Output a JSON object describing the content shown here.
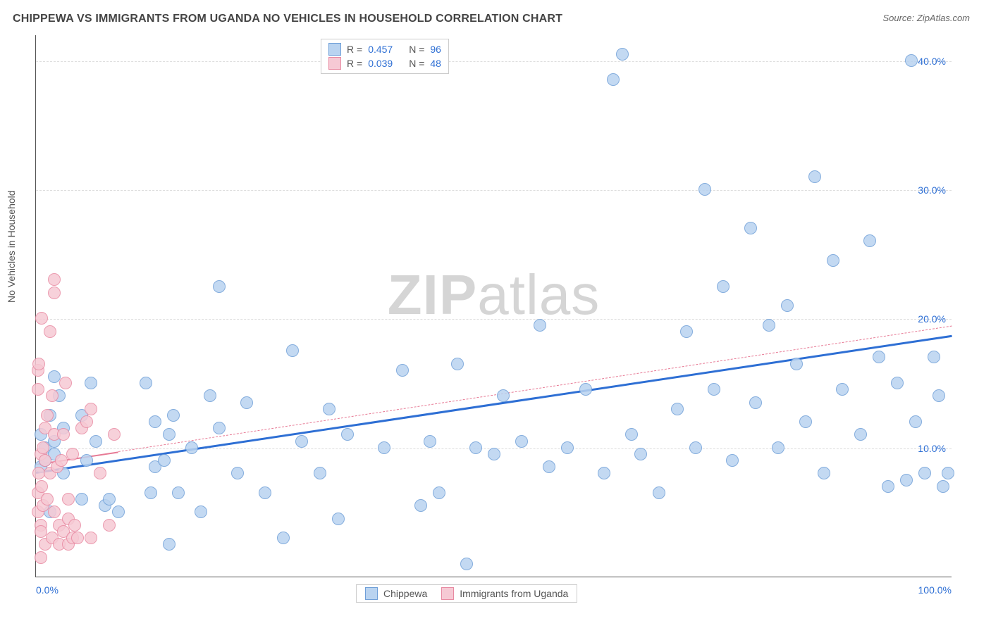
{
  "title": "CHIPPEWA VS IMMIGRANTS FROM UGANDA NO VEHICLES IN HOUSEHOLD CORRELATION CHART",
  "source": "Source: ZipAtlas.com",
  "watermark_a": "ZIP",
  "watermark_b": "atlas",
  "ylabel": "No Vehicles in Household",
  "chart": {
    "type": "scatter",
    "xlim": [
      0,
      100
    ],
    "ylim": [
      0,
      42
    ],
    "y_gridlines": [
      10,
      20,
      30,
      40
    ],
    "y_tick_labels": [
      "10.0%",
      "20.0%",
      "30.0%",
      "40.0%"
    ],
    "x_tick_labels": {
      "left": "0.0%",
      "right": "100.0%"
    },
    "background_color": "#ffffff",
    "grid_color": "#dddddd",
    "marker_radius": 9,
    "marker_stroke_width": 1,
    "series": [
      {
        "name": "Chippewa",
        "fill_color": "#b9d3f0",
        "stroke_color": "#6f9fd8",
        "r_value": "0.457",
        "n_value": "96",
        "trend": {
          "x1": 0,
          "y1": 8.2,
          "x2": 100,
          "y2": 18.8,
          "solid_until_x": 100,
          "color": "#2e6fd4",
          "width": 3
        },
        "points": [
          [
            0.5,
            8.5
          ],
          [
            0.5,
            11
          ],
          [
            1,
            10
          ],
          [
            1,
            9
          ],
          [
            1.5,
            5
          ],
          [
            1.5,
            12.5
          ],
          [
            2,
            9.5
          ],
          [
            2,
            15.5
          ],
          [
            2,
            10.5
          ],
          [
            2.5,
            14
          ],
          [
            3,
            8
          ],
          [
            3,
            11.5
          ],
          [
            5,
            12.5
          ],
          [
            5,
            6
          ],
          [
            5.5,
            9
          ],
          [
            6,
            15
          ],
          [
            6.5,
            10.5
          ],
          [
            7.5,
            5.5
          ],
          [
            8,
            6
          ],
          [
            9,
            5
          ],
          [
            12,
            15
          ],
          [
            12.5,
            6.5
          ],
          [
            13,
            8.5
          ],
          [
            13,
            12
          ],
          [
            14,
            9
          ],
          [
            14.5,
            11
          ],
          [
            14.5,
            2.5
          ],
          [
            15,
            12.5
          ],
          [
            15.5,
            6.5
          ],
          [
            17,
            10
          ],
          [
            18,
            5
          ],
          [
            19,
            14
          ],
          [
            20,
            22.5
          ],
          [
            20,
            11.5
          ],
          [
            22,
            8
          ],
          [
            23,
            13.5
          ],
          [
            25,
            6.5
          ],
          [
            27,
            3
          ],
          [
            28,
            17.5
          ],
          [
            29,
            10.5
          ],
          [
            31,
            8
          ],
          [
            32,
            13
          ],
          [
            33,
            4.5
          ],
          [
            34,
            11
          ],
          [
            38,
            10
          ],
          [
            40,
            16
          ],
          [
            42,
            5.5
          ],
          [
            43,
            10.5
          ],
          [
            44,
            6.5
          ],
          [
            46,
            16.5
          ],
          [
            47,
            1
          ],
          [
            48,
            10
          ],
          [
            50,
            9.5
          ],
          [
            51,
            14
          ],
          [
            53,
            10.5
          ],
          [
            55,
            19.5
          ],
          [
            56,
            8.5
          ],
          [
            58,
            10
          ],
          [
            60,
            14.5
          ],
          [
            62,
            8
          ],
          [
            63,
            38.5
          ],
          [
            64,
            40.5
          ],
          [
            65,
            11
          ],
          [
            66,
            9.5
          ],
          [
            68,
            6.5
          ],
          [
            70,
            13
          ],
          [
            71,
            19
          ],
          [
            72,
            10
          ],
          [
            73,
            30
          ],
          [
            74,
            14.5
          ],
          [
            75,
            22.5
          ],
          [
            76,
            9
          ],
          [
            78,
            27
          ],
          [
            78.5,
            13.5
          ],
          [
            80,
            19.5
          ],
          [
            81,
            10
          ],
          [
            82,
            21
          ],
          [
            83,
            16.5
          ],
          [
            84,
            12
          ],
          [
            85,
            31
          ],
          [
            86,
            8
          ],
          [
            87,
            24.5
          ],
          [
            88,
            14.5
          ],
          [
            90,
            11
          ],
          [
            91,
            26
          ],
          [
            92,
            17
          ],
          [
            93,
            7
          ],
          [
            94,
            15
          ],
          [
            95,
            7.5
          ],
          [
            95.5,
            40
          ],
          [
            96,
            12
          ],
          [
            97,
            8
          ],
          [
            98,
            17
          ],
          [
            98.5,
            14
          ],
          [
            99,
            7
          ],
          [
            99.5,
            8
          ]
        ]
      },
      {
        "name": "Immigrants from Uganda",
        "fill_color": "#f6c9d4",
        "stroke_color": "#e88aa2",
        "r_value": "0.039",
        "n_value": "48",
        "trend": {
          "x1": 0,
          "y1": 8.8,
          "x2": 100,
          "y2": 19.5,
          "solid_until_x": 9,
          "color": "#e77a95",
          "width": 2
        },
        "points": [
          [
            0.2,
            5
          ],
          [
            0.2,
            6.5
          ],
          [
            0.2,
            14.5
          ],
          [
            0.2,
            16
          ],
          [
            0.3,
            8
          ],
          [
            0.3,
            16.5
          ],
          [
            0.5,
            4
          ],
          [
            0.5,
            1.5
          ],
          [
            0.5,
            9.5
          ],
          [
            0.5,
            3.5
          ],
          [
            0.6,
            7
          ],
          [
            0.6,
            20
          ],
          [
            0.8,
            10
          ],
          [
            0.8,
            5.5
          ],
          [
            1,
            11.5
          ],
          [
            1,
            2.5
          ],
          [
            1,
            9
          ],
          [
            1.2,
            6
          ],
          [
            1.2,
            12.5
          ],
          [
            1.5,
            8
          ],
          [
            1.5,
            19
          ],
          [
            1.8,
            3
          ],
          [
            1.8,
            14
          ],
          [
            2,
            22
          ],
          [
            2,
            5
          ],
          [
            2,
            23
          ],
          [
            2,
            11
          ],
          [
            2.3,
            8.5
          ],
          [
            2.5,
            4
          ],
          [
            2.5,
            2.5
          ],
          [
            2.8,
            9
          ],
          [
            3,
            11
          ],
          [
            3,
            3.5
          ],
          [
            3.2,
            15
          ],
          [
            3.5,
            6
          ],
          [
            3.5,
            4.5
          ],
          [
            3.5,
            2.5
          ],
          [
            4,
            3
          ],
          [
            4,
            9.5
          ],
          [
            4.2,
            4
          ],
          [
            4.5,
            3
          ],
          [
            5,
            11.5
          ],
          [
            5.5,
            12
          ],
          [
            6,
            13
          ],
          [
            6,
            3
          ],
          [
            7,
            8
          ],
          [
            8,
            4
          ],
          [
            8.5,
            11
          ]
        ]
      }
    ]
  },
  "legend_top": {
    "r_label": "R =",
    "n_label": "N ="
  },
  "colors": {
    "blue_text": "#2e6fd4",
    "pink_text": "#e77a95",
    "label_text": "#555555"
  }
}
